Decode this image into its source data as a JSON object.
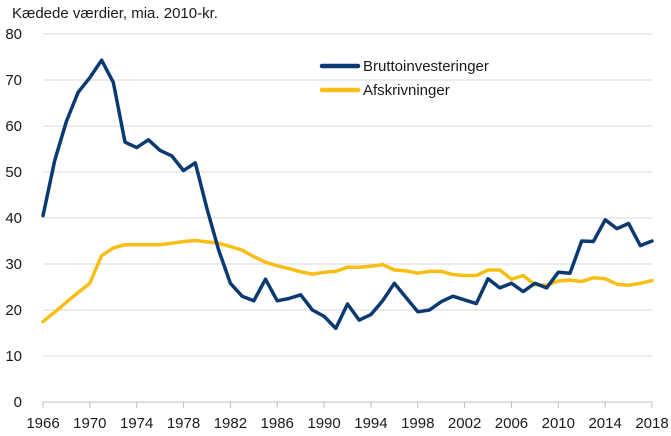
{
  "chart_data": {
    "type": "line",
    "title": "",
    "ylabel": "Kædede værdier, mia. 2010-kr.",
    "xlabel": "",
    "xlim": [
      1966,
      2018
    ],
    "ylim": [
      0,
      80
    ],
    "yticks": [
      0,
      10,
      20,
      30,
      40,
      50,
      60,
      70,
      80
    ],
    "xticks": [
      1966,
      1970,
      1974,
      1978,
      1982,
      1986,
      1990,
      1994,
      1998,
      2002,
      2006,
      2010,
      2014,
      2018
    ],
    "grid": "horizontal",
    "legend_position": "top-right",
    "x": [
      1966,
      1967,
      1968,
      1969,
      1970,
      1971,
      1972,
      1973,
      1974,
      1975,
      1976,
      1977,
      1978,
      1979,
      1980,
      1981,
      1982,
      1983,
      1984,
      1985,
      1986,
      1987,
      1988,
      1989,
      1990,
      1991,
      1992,
      1993,
      1994,
      1995,
      1996,
      1997,
      1998,
      1999,
      2000,
      2001,
      2002,
      2003,
      2004,
      2005,
      2006,
      2007,
      2008,
      2009,
      2010,
      2011,
      2012,
      2013,
      2014,
      2015,
      2016,
      2017,
      2018
    ],
    "series": [
      {
        "name": "Bruttoinvesteringer",
        "color": "#0b3a73",
        "values": [
          40.5,
          52.5,
          61.0,
          67.3,
          70.5,
          74.3,
          69.5,
          56.5,
          55.3,
          57.0,
          54.7,
          53.5,
          50.3,
          52.0,
          42.0,
          33.0,
          25.8,
          23.0,
          22.0,
          26.7,
          22.0,
          22.5,
          23.3,
          20.0,
          18.6,
          16.0,
          21.3,
          17.8,
          19.0,
          22.0,
          25.8,
          22.7,
          19.6,
          20.0,
          21.8,
          23.0,
          22.2,
          21.4,
          26.8,
          24.8,
          25.8,
          24.0,
          25.8,
          24.8,
          28.2,
          28.0,
          35.0,
          34.9,
          39.6,
          37.7,
          38.8,
          34.0,
          35.0
        ]
      },
      {
        "name": "Afskrivninger",
        "color": "#f8be14",
        "values": [
          17.5,
          19.5,
          21.7,
          23.8,
          25.8,
          31.8,
          33.5,
          34.2,
          34.2,
          34.2,
          34.2,
          34.5,
          34.9,
          35.1,
          34.8,
          34.5,
          33.8,
          33.0,
          31.6,
          30.4,
          29.6,
          29.0,
          28.3,
          27.8,
          28.2,
          28.4,
          29.3,
          29.3,
          29.5,
          29.9,
          28.7,
          28.5,
          28.0,
          28.4,
          28.4,
          27.7,
          27.5,
          27.5,
          28.7,
          28.7,
          26.7,
          27.5,
          25.5,
          25.4,
          26.3,
          26.5,
          26.2,
          27.0,
          26.8,
          25.6,
          25.4,
          25.8,
          26.4
        ]
      }
    ]
  }
}
